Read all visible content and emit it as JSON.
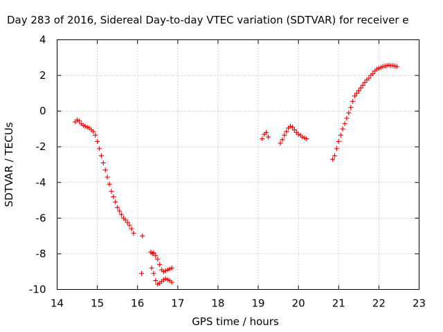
{
  "chart_data": {
    "type": "scatter",
    "title": "Day 283 of 2016, Sidereal Day-to-day VTEC variation (SDTVAR) for receiver e",
    "xlabel": "GPS time / hours",
    "ylabel": "SDTVAR / TECUs",
    "xlim": [
      14,
      23
    ],
    "ylim": [
      -10,
      4
    ],
    "xticks": [
      14,
      15,
      16,
      17,
      18,
      19,
      20,
      21,
      22,
      23
    ],
    "yticks": [
      -10,
      -8,
      -6,
      -4,
      -2,
      0,
      2,
      4
    ],
    "xtick_labels": [
      "14",
      "15",
      "16",
      "17",
      "18",
      "19",
      "20",
      "21",
      "22",
      "23"
    ],
    "ytick_labels": [
      "-10",
      "-8",
      "-6",
      "-4",
      "-2",
      "0",
      "2",
      "4"
    ],
    "grid": true,
    "marker": "+",
    "series": [
      {
        "name": "SDTVAR",
        "color": "#ff0000",
        "segments": [
          {
            "x": [
              14.45,
              14.5,
              14.55,
              14.6,
              14.65,
              14.7,
              14.75,
              14.8,
              14.85,
              14.9,
              14.95,
              15.0,
              15.05,
              15.1,
              15.15,
              15.2,
              15.25,
              15.3,
              15.35,
              15.4,
              15.45,
              15.5,
              15.55,
              15.6,
              15.65,
              15.7,
              15.75,
              15.8,
              15.85,
              15.9
            ],
            "y": [
              -0.6,
              -0.5,
              -0.55,
              -0.7,
              -0.8,
              -0.85,
              -0.9,
              -0.95,
              -1.05,
              -1.15,
              -1.35,
              -1.7,
              -2.1,
              -2.5,
              -2.9,
              -3.3,
              -3.7,
              -4.1,
              -4.5,
              -4.8,
              -5.1,
              -5.4,
              -5.6,
              -5.8,
              -6.0,
              -6.1,
              -6.25,
              -6.4,
              -6.6,
              -6.85
            ]
          },
          {
            "x": [
              16.1,
              16.12
            ],
            "y": [
              -9.1,
              -7.0
            ]
          },
          {
            "x": [
              16.33,
              16.37,
              16.4,
              16.45,
              16.5,
              16.55,
              16.6,
              16.65,
              16.7,
              16.75,
              16.8,
              16.85
            ],
            "y": [
              -7.9,
              -8.0,
              -7.95,
              -8.1,
              -8.3,
              -8.6,
              -8.9,
              -9.0,
              -8.95,
              -8.9,
              -8.85,
              -8.8
            ]
          },
          {
            "x": [
              16.35,
              16.4,
              16.45,
              16.5,
              16.55,
              16.6,
              16.65,
              16.7,
              16.75,
              16.8,
              16.85
            ],
            "y": [
              -8.8,
              -9.1,
              -9.5,
              -9.7,
              -9.65,
              -9.55,
              -9.45,
              -9.4,
              -9.45,
              -9.5,
              -9.6
            ]
          },
          {
            "x": [
              19.1,
              19.15,
              19.2,
              19.25
            ],
            "y": [
              -1.55,
              -1.3,
              -1.2,
              -1.45
            ]
          },
          {
            "x": [
              19.55,
              19.6,
              19.65,
              19.7,
              19.75,
              19.8,
              19.85,
              19.9,
              19.95,
              20.0,
              20.05,
              20.1,
              20.15,
              20.2
            ],
            "y": [
              -1.8,
              -1.6,
              -1.35,
              -1.15,
              -0.95,
              -0.85,
              -0.9,
              -1.05,
              -1.2,
              -1.3,
              -1.35,
              -1.45,
              -1.5,
              -1.55
            ]
          },
          {
            "x": [
              20.85,
              20.9,
              20.95,
              21.0,
              21.05,
              21.1,
              21.15,
              21.2,
              21.25,
              21.3,
              21.35,
              21.4,
              21.45,
              21.5,
              21.55,
              21.6,
              21.65,
              21.7,
              21.75,
              21.8,
              21.85,
              21.9,
              21.95,
              22.0,
              22.05,
              22.1,
              22.15,
              22.2,
              22.25,
              22.3,
              22.35,
              22.4,
              22.45
            ],
            "y": [
              -2.7,
              -2.5,
              -2.1,
              -1.7,
              -1.35,
              -1.0,
              -0.7,
              -0.4,
              -0.1,
              0.2,
              0.55,
              0.85,
              1.0,
              1.15,
              1.3,
              1.45,
              1.6,
              1.75,
              1.85,
              2.0,
              2.1,
              2.25,
              2.35,
              2.4,
              2.45,
              2.5,
              2.52,
              2.55,
              2.58,
              2.55,
              2.55,
              2.52,
              2.5
            ]
          }
        ]
      }
    ]
  }
}
